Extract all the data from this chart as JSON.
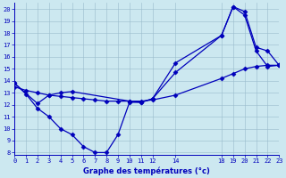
{
  "xlabel": "Graphe des températures (°c)",
  "bg_color": "#cce8f0",
  "line_color": "#0000bb",
  "grid_color": "#99bbcc",
  "xlim": [
    0,
    23
  ],
  "ylim": [
    7.8,
    20.5
  ],
  "xticks": [
    0,
    1,
    2,
    3,
    4,
    5,
    6,
    7,
    8,
    9,
    10,
    11,
    12,
    14,
    18,
    19,
    20,
    21,
    22,
    23
  ],
  "yticks": [
    8,
    9,
    10,
    11,
    12,
    13,
    14,
    15,
    16,
    17,
    18,
    19,
    20
  ],
  "line1_x": [
    0,
    1,
    2,
    3,
    4,
    5,
    6,
    7,
    8,
    9,
    10,
    11,
    12,
    14,
    18,
    19,
    20,
    21,
    22,
    23
  ],
  "line1_y": [
    13.8,
    12.9,
    11.7,
    11.0,
    10.0,
    9.5,
    8.5,
    8.0,
    8.0,
    9.5,
    12.2,
    12.2,
    12.5,
    14.7,
    17.8,
    20.2,
    19.5,
    16.5,
    15.2,
    15.3
  ],
  "line2_x": [
    0,
    2,
    3,
    4,
    5,
    10,
    11,
    12,
    14,
    18,
    19,
    20,
    21,
    22,
    23
  ],
  "line2_y": [
    13.8,
    12.1,
    12.8,
    13.0,
    13.1,
    12.3,
    12.2,
    12.5,
    15.5,
    17.8,
    20.2,
    19.8,
    16.8,
    16.5,
    15.3
  ],
  "line3_x": [
    0,
    1,
    2,
    3,
    4,
    5,
    6,
    7,
    8,
    9,
    10,
    11,
    12,
    14,
    18,
    19,
    20,
    21,
    22,
    23
  ],
  "line3_y": [
    13.5,
    13.2,
    13.0,
    12.8,
    12.7,
    12.6,
    12.5,
    12.4,
    12.3,
    12.3,
    12.3,
    12.3,
    12.4,
    12.8,
    14.2,
    14.6,
    15.0,
    15.2,
    15.3,
    15.3
  ]
}
